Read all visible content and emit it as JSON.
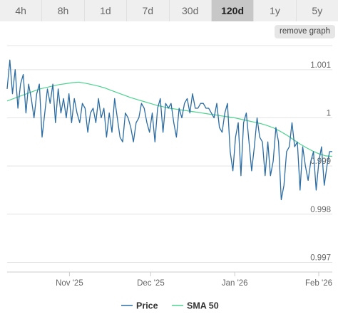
{
  "tabs": [
    {
      "label": "4h",
      "active": false
    },
    {
      "label": "8h",
      "active": false
    },
    {
      "label": "1d",
      "active": false
    },
    {
      "label": "7d",
      "active": false
    },
    {
      "label": "30d",
      "active": false
    },
    {
      "label": "120d",
      "active": true
    },
    {
      "label": "1y",
      "active": false
    },
    {
      "label": "5y",
      "active": false
    }
  ],
  "remove_graph_label": "remove graph",
  "colors": {
    "price": "#2b6ca3",
    "sma": "#4cd38f",
    "grid": "#e3e3e3",
    "axis": "#cccccc"
  },
  "chart_data": {
    "type": "line",
    "y_tick_labels": [
      "1.001",
      "1",
      "0.999",
      "0.998",
      "0.997"
    ],
    "y_ticks": [
      1.001,
      1.0,
      0.999,
      0.998,
      0.997
    ],
    "ylim": [
      0.9968,
      1.0015
    ],
    "x_tick_labels": [
      "Nov '25",
      "Dec '25",
      "Jan '26",
      "Feb '26"
    ],
    "x_ticks": [
      23,
      53,
      84,
      115
    ],
    "xlim": [
      0,
      120
    ],
    "grid": true,
    "legend_position": "bottom",
    "series": [
      {
        "name": "Price",
        "values": [
          1.0006,
          1.0012,
          1.0005,
          1.001,
          1.0002,
          1.0007,
          1.0009,
          1.0001,
          1.0007,
          1.0004,
          1.0,
          1.0005,
          1.0007,
          0.9996,
          1.0001,
          1.0006,
          1.0003,
          1.0007,
          0.9999,
          1.0006,
          1.0001,
          1.0004,
          1.0,
          1.0005,
          0.9999,
          1.0004,
          1.0001,
          0.9999,
          1.0003,
          1.0002,
          0.9997,
          1.0001,
          1.0002,
          0.9999,
          1.0004,
          1.0,
          1.0002,
          0.9996,
          1.0001,
          0.9997,
          1.0004,
          1.0,
          0.9996,
          0.9995,
          1.0001,
          1.0,
          0.9998,
          0.9995,
          0.9999,
          1.0,
          1.0003,
          1.0002,
          0.9999,
          0.9997,
          1.0001,
          0.9995,
          1.0002,
          1.0004,
          0.9997,
          1.0003,
          1.0002,
          1.0003,
          0.9999,
          0.9996,
          1.0002,
          1.0,
          1.0003,
          1.0004,
          1.0001,
          1.0005,
          1.0002,
          1.0002,
          1.0003,
          1.0003,
          1.0002,
          1.0002,
          1.0001,
          1.0,
          1.0003,
          0.9998,
          0.9997,
          1.0001,
          1.0003,
          0.9993,
          0.9989,
          0.9996,
          0.9999,
          0.9988,
          0.9999,
          1.0001,
          0.9995,
          0.9989,
          0.9994,
          1.0,
          0.9996,
          0.9995,
          0.9988,
          0.9995,
          0.9988,
          0.9991,
          0.9998,
          0.9995,
          0.9983,
          0.9986,
          0.9993,
          0.9994,
          0.9999,
          0.9994,
          0.9995,
          0.9985,
          0.9994,
          0.999,
          0.9987,
          0.9991,
          0.9993,
          0.9985,
          0.9991,
          0.9994,
          0.9986,
          0.999,
          0.9993,
          0.9993
        ],
        "color": "#2b6ca3"
      },
      {
        "name": "SMA 50",
        "values": [
          1.00035,
          1.0004,
          1.00045,
          1.0005,
          1.00055,
          1.0006,
          1.00063,
          1.00066,
          1.00069,
          1.00071,
          1.00073,
          1.00074,
          1.00072,
          1.00069,
          1.00066,
          1.00062,
          1.00057,
          1.00052,
          1.00047,
          1.00042,
          1.00038,
          1.00034,
          1.0003,
          1.00026,
          1.00023,
          1.0002,
          1.00018,
          1.00016,
          1.00014,
          1.00012,
          1.0001,
          1.00008,
          1.00006,
          1.00004,
          1.00002,
          1.0,
          0.99997,
          0.99994,
          0.99991,
          0.99988,
          0.99984,
          0.99979,
          0.99972,
          0.99964,
          0.99955,
          0.99946,
          0.99938,
          0.99931,
          0.99925,
          0.99921,
          0.9992
        ],
        "color": "#4cd38f"
      }
    ]
  },
  "legend": [
    {
      "label": "Price",
      "color": "#2b6ca3"
    },
    {
      "label": "SMA 50",
      "color": "#4cd38f"
    }
  ]
}
